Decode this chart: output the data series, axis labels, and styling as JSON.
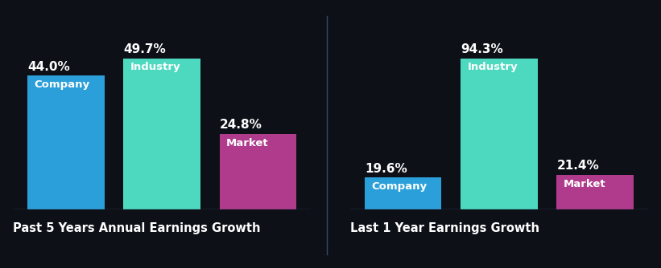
{
  "background_color": "#0d1117",
  "chart1": {
    "title": "Past 5 Years Annual Earnings Growth",
    "bars": [
      {
        "label": "Company",
        "value": 44.0,
        "color": "#2b9fd9"
      },
      {
        "label": "Industry",
        "value": 49.7,
        "color": "#4dd9c0"
      },
      {
        "label": "Market",
        "value": 24.8,
        "color": "#b03a8c"
      }
    ]
  },
  "chart2": {
    "title": "Last 1 Year Earnings Growth",
    "bars": [
      {
        "label": "Company",
        "value": 19.6,
        "color": "#2b9fd9"
      },
      {
        "label": "Industry",
        "value": 94.3,
        "color": "#4dd9c0"
      },
      {
        "label": "Market",
        "value": 21.4,
        "color": "#b03a8c"
      }
    ]
  },
  "text_color": "#ffffff",
  "title_fontsize": 10.5,
  "value_fontsize": 11,
  "bar_label_fontsize": 9.5,
  "separator_color": "#3a4a6b",
  "baseline_color": "#3a4a6b"
}
